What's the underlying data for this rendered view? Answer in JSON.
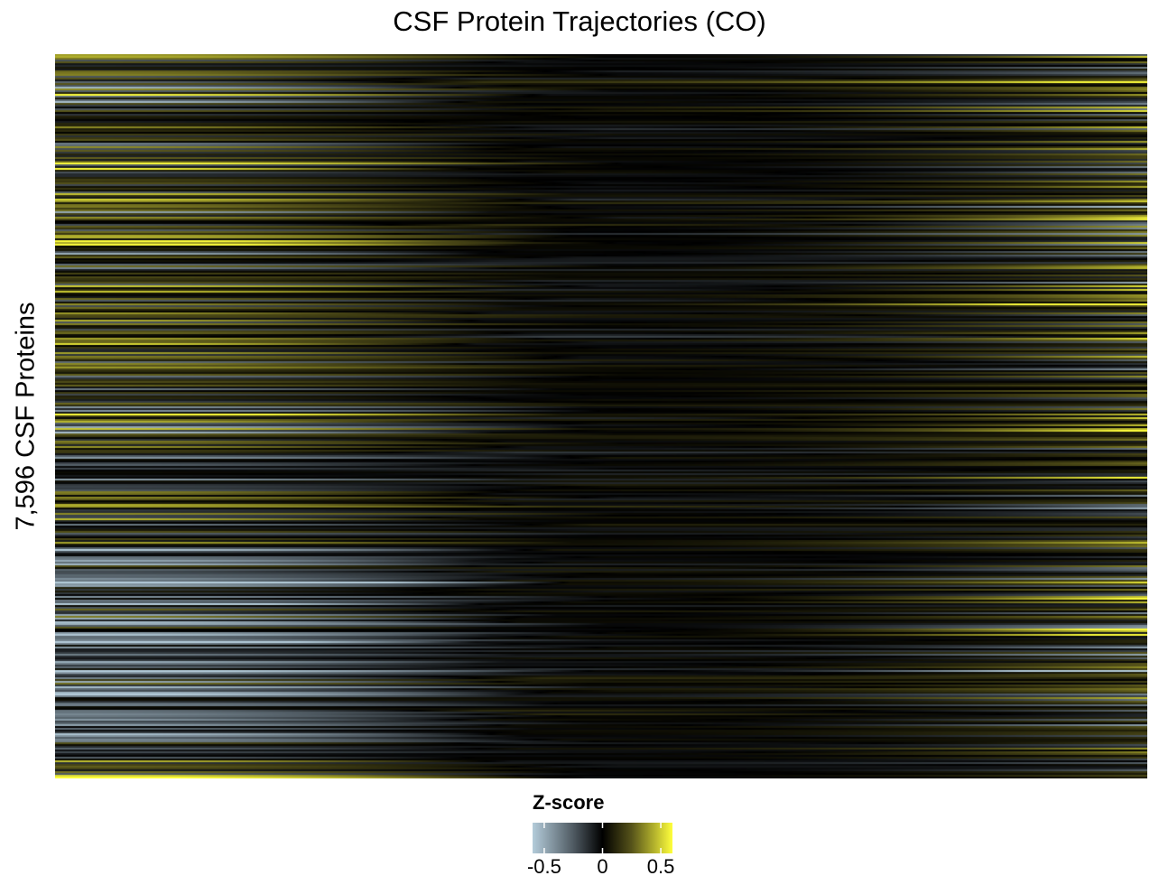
{
  "chart_data": {
    "type": "heatmap",
    "title": "CSF Protein Trajectories (CO)",
    "xlabel": "",
    "ylabel": "7,596 CSF Proteins",
    "rows": 7596,
    "value_range": [
      -0.6,
      0.6
    ],
    "colormap": {
      "low": "#b4ccda",
      "mid": "#000000",
      "high": "#ffff3c",
      "stops": [
        {
          "value": -0.6,
          "color": "#b4ccda"
        },
        {
          "value": -0.25,
          "color": "#4f5a62"
        },
        {
          "value": 0,
          "color": "#000000"
        },
        {
          "value": 0.25,
          "color": "#56531a"
        },
        {
          "value": 0.6,
          "color": "#ffff3c"
        }
      ]
    },
    "pattern_description": "rows sorted/clustered; high/low values concentrated at left and right ends, near-zero in middle",
    "legend": {
      "title": "Z-score",
      "ticks": [
        {
          "value": -0.5,
          "label": "-0.5"
        },
        {
          "value": 0,
          "label": "0"
        },
        {
          "value": 0.5,
          "label": "0.5"
        }
      ],
      "placement": "bottom"
    },
    "grid": false
  }
}
